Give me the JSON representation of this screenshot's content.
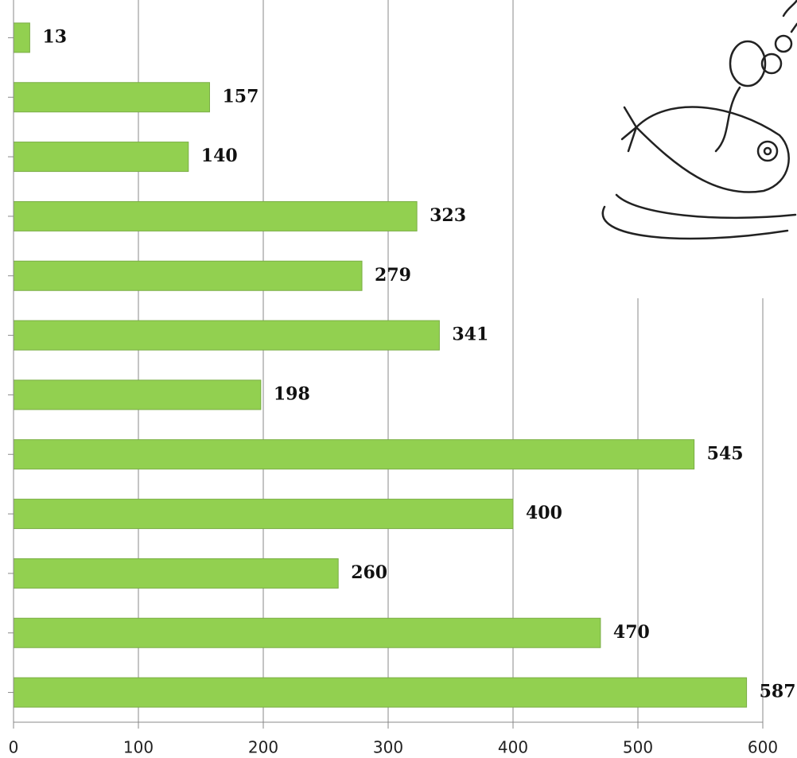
{
  "chart_data": {
    "type": "bar",
    "orientation": "horizontal",
    "categories": [
      null,
      null,
      null,
      null,
      null,
      null,
      null,
      null,
      null,
      null,
      null,
      null
    ],
    "values": [
      13,
      157,
      140,
      323,
      279,
      341,
      198,
      545,
      400,
      260,
      470,
      587
    ],
    "color": "#92d050",
    "xlim": [
      0,
      600
    ],
    "xticks": [
      0,
      100,
      200,
      300,
      400,
      500,
      600
    ],
    "grid": true
  }
}
